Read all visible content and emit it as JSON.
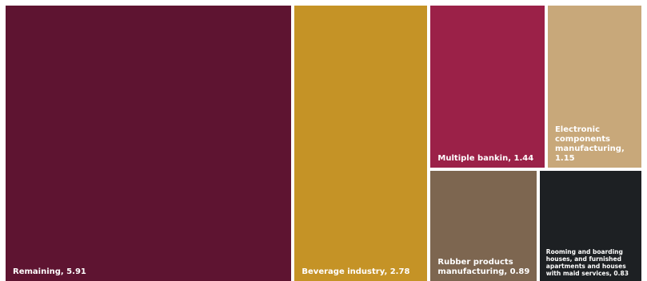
{
  "chart_data": {
    "type": "treemap",
    "title": "",
    "items": [
      {
        "name": "Remaining",
        "value": 5.91,
        "label": "Remaining, 5.91",
        "color": "#5e1431"
      },
      {
        "name": "Beverage industry",
        "value": 2.78,
        "label": "Beverage industry, 2.78",
        "color": "#c59326"
      },
      {
        "name": "Multiple bankin",
        "value": 1.44,
        "label": "Multiple bankin, 1.44",
        "color": "#9b2148"
      },
      {
        "name": "Electronic components manufacturing",
        "value": 1.15,
        "label": "Electronic\ncomponents\nmanufacturing,\n1.15",
        "color": "#c8a87a"
      },
      {
        "name": "Rubber products manufacturing",
        "value": 0.89,
        "label": "Rubber products\nmanufacturing, 0.89",
        "color": "#7d6650"
      },
      {
        "name": "Rooming and boarding houses, and furnished apartments and houses with maid services",
        "value": 0.83,
        "label": "Rooming and boarding\nhouses, and furnished\napartments and houses\nwith maid services, 0.83",
        "color": "#1d2023"
      }
    ]
  }
}
